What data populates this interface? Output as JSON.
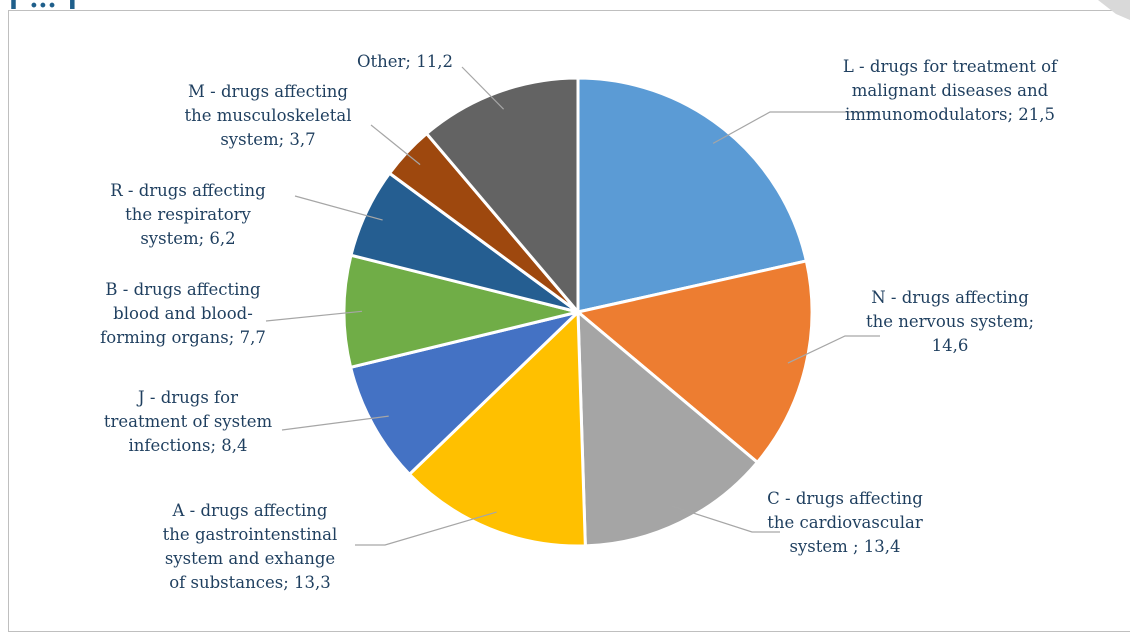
{
  "header": {
    "partial_title": "[ ... ] "
  },
  "chart_data": {
    "type": "pie",
    "title": "",
    "slices": [
      {
        "label_lines": [
          "L - drugs for treatment of",
          "malignant diseases and",
          "immunomodulators; 21,5"
        ],
        "value": 21.5,
        "color": "#5b9bd5"
      },
      {
        "label_lines": [
          "N - drugs affecting",
          "the nervous system;",
          "14,6"
        ],
        "value": 14.6,
        "color": "#ed7d31"
      },
      {
        "label_lines": [
          "C - drugs affecting",
          "the cardiovascular",
          "system ; 13,4"
        ],
        "value": 13.4,
        "color": "#a5a5a5"
      },
      {
        "label_lines": [
          "A - drugs affecting",
          "the gastrointenstinal",
          "system and exhange",
          "of substances; 13,3"
        ],
        "value": 13.3,
        "color": "#ffc000"
      },
      {
        "label_lines": [
          "J - drugs for",
          "treatment of system",
          "infections; 8,4"
        ],
        "value": 8.4,
        "color": "#4472c4"
      },
      {
        "label_lines": [
          "B - drugs affecting",
          "blood and blood-",
          "forming organs; 7,7"
        ],
        "value": 7.7,
        "color": "#70ad47"
      },
      {
        "label_lines": [
          "R - drugs affecting",
          "the respiratory",
          "system; 6,2"
        ],
        "value": 6.2,
        "color": "#255e91"
      },
      {
        "label_lines": [
          "M - drugs affecting",
          "the musculoskeletal",
          "system; 3,7"
        ],
        "value": 3.7,
        "color": "#9e480e"
      },
      {
        "label_lines": [
          "Other; 11,2"
        ],
        "value": 11.2,
        "color": "#636363"
      }
    ]
  }
}
